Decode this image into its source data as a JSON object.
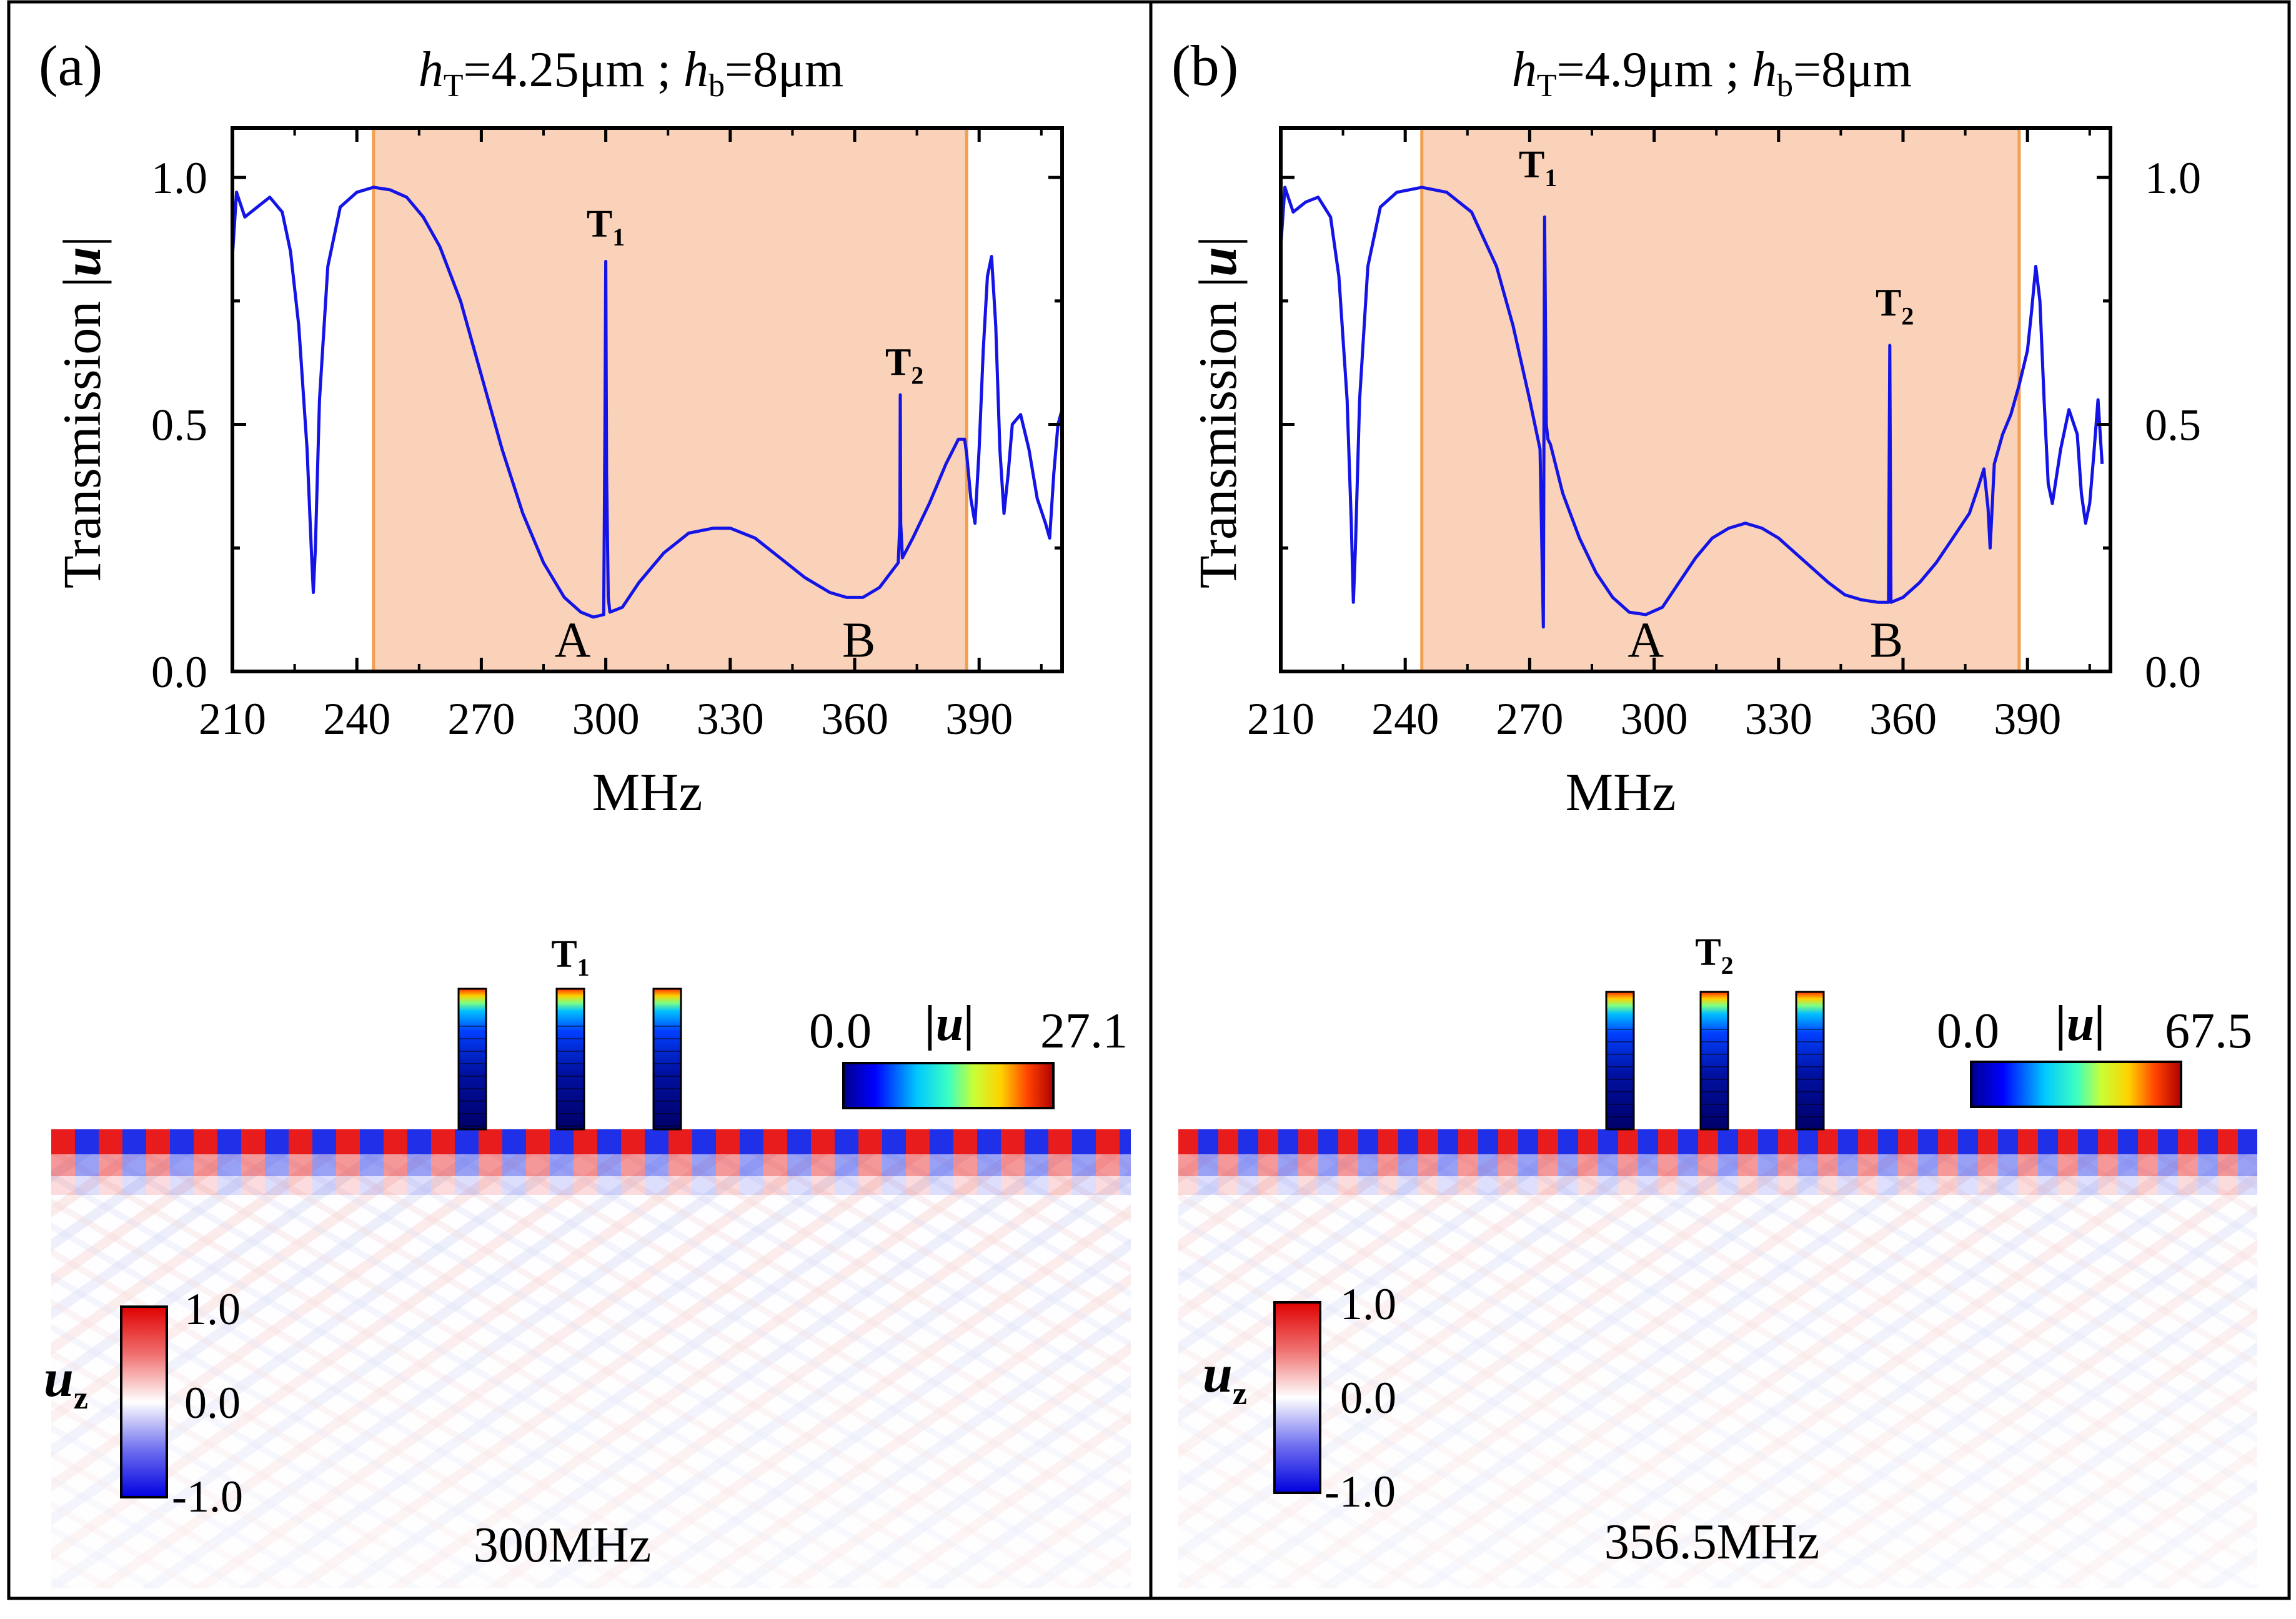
{
  "chart_data": [
    {
      "type": "line",
      "panel_label": "(a)",
      "title_parts": [
        "h",
        "T",
        "=4.25μm ;  ",
        "h",
        "b",
        "=8μm"
      ],
      "xlabel": "MHz",
      "ylabel": "Transmission |u|",
      "xlim": [
        210,
        410
      ],
      "ylim": [
        0,
        1.1
      ],
      "xticks": [
        210,
        240,
        270,
        300,
        330,
        360,
        390
      ],
      "yticks": [
        "0.0",
        "0.5",
        "1.0"
      ],
      "band": [
        244,
        387
      ],
      "band_color": "#f9d2b9",
      "band_edge_color": "#f0a050",
      "line_color": "#1414e6",
      "series": [
        {
          "name": "transmission",
          "x": [
            210,
            211,
            213,
            216,
            219,
            222,
            224,
            226,
            228,
            229,
            229.5,
            230,
            231,
            233,
            236,
            240,
            244,
            248,
            252,
            256,
            260,
            265,
            270,
            275,
            280,
            285,
            290,
            294,
            297,
            299.5,
            299.8,
            300,
            300.2,
            300.6,
            301,
            304,
            308,
            314,
            320,
            326,
            330,
            336,
            342,
            348,
            354,
            358,
            362,
            366,
            370.5,
            370.9,
            371,
            371.1,
            371.5,
            374,
            378,
            382,
            385,
            386.5,
            387,
            388,
            389,
            390,
            391,
            392,
            393,
            394,
            395,
            396,
            397,
            398,
            400,
            402,
            404,
            406,
            407,
            408,
            409,
            410
          ],
          "y": [
            0.84,
            0.97,
            0.92,
            0.94,
            0.96,
            0.93,
            0.85,
            0.7,
            0.45,
            0.25,
            0.16,
            0.25,
            0.55,
            0.82,
            0.94,
            0.97,
            0.98,
            0.975,
            0.96,
            0.92,
            0.86,
            0.75,
            0.6,
            0.45,
            0.32,
            0.22,
            0.15,
            0.12,
            0.11,
            0.115,
            0.5,
            0.83,
            0.4,
            0.15,
            0.12,
            0.13,
            0.18,
            0.24,
            0.28,
            0.29,
            0.29,
            0.27,
            0.23,
            0.19,
            0.16,
            0.15,
            0.15,
            0.17,
            0.22,
            0.3,
            0.56,
            0.3,
            0.23,
            0.27,
            0.34,
            0.42,
            0.47,
            0.47,
            0.44,
            0.35,
            0.3,
            0.45,
            0.65,
            0.8,
            0.84,
            0.7,
            0.45,
            0.32,
            0.4,
            0.5,
            0.52,
            0.45,
            0.35,
            0.3,
            0.27,
            0.4,
            0.5,
            0.53
          ]
        }
      ],
      "markers": [
        {
          "label": "T",
          "sub": "1",
          "x": 300,
          "y": 0.88,
          "bold": true
        },
        {
          "label": "T",
          "sub": "2",
          "x": 372,
          "y": 0.6,
          "bold": true
        },
        {
          "label": "A",
          "sub": "",
          "x": 292,
          "y": 0.03,
          "bold": false
        },
        {
          "label": "B",
          "sub": "",
          "x": 361,
          "y": 0.03,
          "bold": false
        }
      ],
      "y_axis_side": "left"
    },
    {
      "type": "line",
      "panel_label": "(b)",
      "title_parts": [
        "h",
        "T",
        "=4.9μm ;  ",
        "h",
        "b",
        "=8μm"
      ],
      "xlabel": "MHz",
      "ylabel": "Transmission |u|",
      "xlim": [
        210,
        410
      ],
      "ylim": [
        0,
        1.1
      ],
      "xticks": [
        210,
        240,
        270,
        300,
        330,
        360,
        390
      ],
      "yticks": [
        "0.0",
        "0.5",
        "1.0"
      ],
      "band": [
        244,
        388
      ],
      "band_color": "#f9d2b9",
      "band_edge_color": "#f0a050",
      "line_color": "#1414e6",
      "series": [
        {
          "name": "transmission",
          "x": [
            210,
            211,
            213,
            216,
            219,
            222,
            224,
            226,
            227,
            227.5,
            228,
            229,
            231,
            234,
            238,
            244,
            250,
            256,
            262,
            266,
            270,
            272.5,
            273.3,
            273.6,
            274,
            274.4,
            275,
            278,
            282,
            286,
            290,
            294,
            298,
            302,
            306,
            310,
            314,
            318,
            322,
            326,
            330,
            334,
            338,
            342,
            346,
            350,
            354,
            356.5,
            356.8,
            357.1,
            360,
            364,
            368,
            372,
            376,
            378,
            379.5,
            380.5,
            381,
            382,
            384,
            386,
            388,
            390,
            391,
            392,
            393,
            394,
            395,
            396,
            398,
            400,
            402,
            403,
            404,
            405,
            406,
            407,
            408
          ],
          "y": [
            0.86,
            0.98,
            0.93,
            0.95,
            0.96,
            0.92,
            0.8,
            0.55,
            0.3,
            0.14,
            0.25,
            0.55,
            0.82,
            0.94,
            0.97,
            0.98,
            0.97,
            0.93,
            0.82,
            0.7,
            0.55,
            0.45,
            0.09,
            0.92,
            0.5,
            0.47,
            0.46,
            0.36,
            0.27,
            0.2,
            0.15,
            0.12,
            0.115,
            0.13,
            0.18,
            0.23,
            0.27,
            0.29,
            0.3,
            0.29,
            0.27,
            0.24,
            0.21,
            0.18,
            0.155,
            0.145,
            0.14,
            0.14,
            0.66,
            0.14,
            0.15,
            0.18,
            0.22,
            0.27,
            0.32,
            0.37,
            0.41,
            0.33,
            0.25,
            0.42,
            0.48,
            0.52,
            0.58,
            0.65,
            0.73,
            0.82,
            0.75,
            0.55,
            0.38,
            0.34,
            0.45,
            0.53,
            0.48,
            0.36,
            0.3,
            0.34,
            0.44,
            0.55,
            0.42
          ]
        }
      ],
      "markers": [
        {
          "label": "T",
          "sub": "1",
          "x": 272,
          "y": 1.0,
          "bold": true
        },
        {
          "label": "T",
          "sub": "2",
          "x": 358,
          "y": 0.72,
          "bold": true
        },
        {
          "label": "A",
          "sub": "",
          "x": 298,
          "y": 0.03,
          "bold": false
        },
        {
          "label": "B",
          "sub": "",
          "x": 356,
          "y": 0.03,
          "bold": false
        }
      ],
      "y_axis_side": "right"
    }
  ],
  "field_maps": [
    {
      "pillar_label_main": "T",
      "pillar_label_sub": "1",
      "u_colorbar": {
        "min_label": "0.0",
        "max_label": "27.1",
        "title": "|u|"
      },
      "uz_colorbar": {
        "top_label": "1.0",
        "mid_label": "0.0",
        "bottom_label": "-1.0",
        "title_main": "u",
        "title_sub": "z"
      },
      "frequency_label": "300MHz"
    },
    {
      "pillar_label_main": "T",
      "pillar_label_sub": "2",
      "u_colorbar": {
        "min_label": "0.0",
        "max_label": "67.5",
        "title": "|u|"
      },
      "uz_colorbar": {
        "top_label": "1.0",
        "mid_label": "0.0",
        "bottom_label": "-1.0",
        "title_main": "u",
        "title_sub": "z"
      },
      "frequency_label": "356.5MHz"
    }
  ]
}
